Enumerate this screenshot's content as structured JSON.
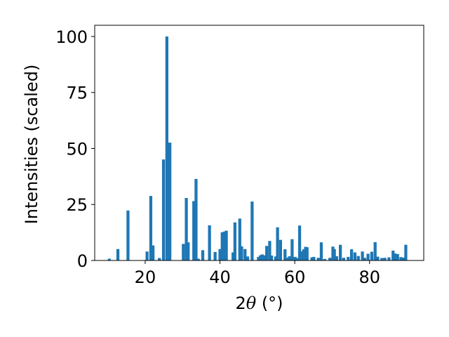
{
  "chart_data": {
    "type": "bar",
    "title": "",
    "xlabel_prefix": "2",
    "xlabel_symbol": "θ",
    "xlabel_suffix": " (°)",
    "ylabel": "Intensities (scaled)",
    "xlim": [
      6.5,
      94.5
    ],
    "ylim": [
      0,
      105
    ],
    "xticks": [
      20,
      40,
      60,
      80
    ],
    "yticks": [
      0,
      25,
      50,
      75,
      100
    ],
    "grid": false,
    "legend": "none",
    "bar_color": "#1f77b4",
    "bar_width_deg": 0.8,
    "x": [
      10.4,
      12.7,
      15.4,
      20.5,
      21.5,
      22.1,
      23.8,
      24.9,
      25.8,
      26.6,
      30.2,
      31.0,
      31.5,
      33.0,
      33.6,
      34.2,
      35.4,
      37.2,
      38.7,
      40.0,
      40.6,
      41.2,
      41.7,
      43.5,
      44.0,
      45.3,
      45.8,
      46.7,
      47.4,
      48.6,
      50.3,
      50.8,
      51.3,
      52.0,
      52.5,
      53.3,
      53.8,
      54.9,
      55.4,
      56.2,
      57.4,
      58.2,
      58.6,
      59.3,
      60.1,
      60.6,
      61.3,
      61.9,
      62.4,
      62.9,
      63.3,
      64.6,
      65.1,
      66.3,
      67.1,
      68.0,
      69.4,
      70.2,
      70.6,
      71.2,
      72.2,
      73.1,
      74.3,
      75.2,
      76.1,
      77.0,
      78.1,
      78.7,
      79.6,
      80.6,
      81.5,
      82.2,
      83.3,
      84.1,
      85.2,
      86.3,
      86.8,
      87.5,
      88.4,
      89.1,
      89.7
    ],
    "values": [
      0.8,
      5.1,
      22.3,
      4.0,
      28.8,
      6.7,
      1.1,
      45.1,
      100.0,
      52.6,
      7.4,
      27.9,
      8.1,
      26.5,
      36.4,
      0.8,
      4.6,
      15.7,
      3.8,
      5.1,
      12.6,
      12.9,
      13.3,
      3.6,
      17.0,
      18.7,
      6.3,
      5.1,
      1.8,
      26.3,
      1.6,
      2.3,
      2.7,
      2.3,
      6.5,
      8.7,
      2.2,
      1.8,
      14.8,
      9.2,
      5.0,
      1.3,
      1.9,
      9.5,
      1.6,
      1.1,
      15.6,
      4.1,
      5.0,
      6.1,
      5.9,
      1.4,
      1.6,
      1.2,
      8.1,
      0.7,
      1.2,
      6.2,
      5.1,
      1.9,
      7.0,
      1.2,
      1.6,
      5.0,
      3.6,
      2.0,
      4.0,
      1.2,
      3.0,
      3.9,
      8.2,
      1.7,
      1.1,
      1.2,
      1.4,
      4.4,
      3.1,
      2.9,
      1.5,
      1.3,
      7.0
    ]
  }
}
